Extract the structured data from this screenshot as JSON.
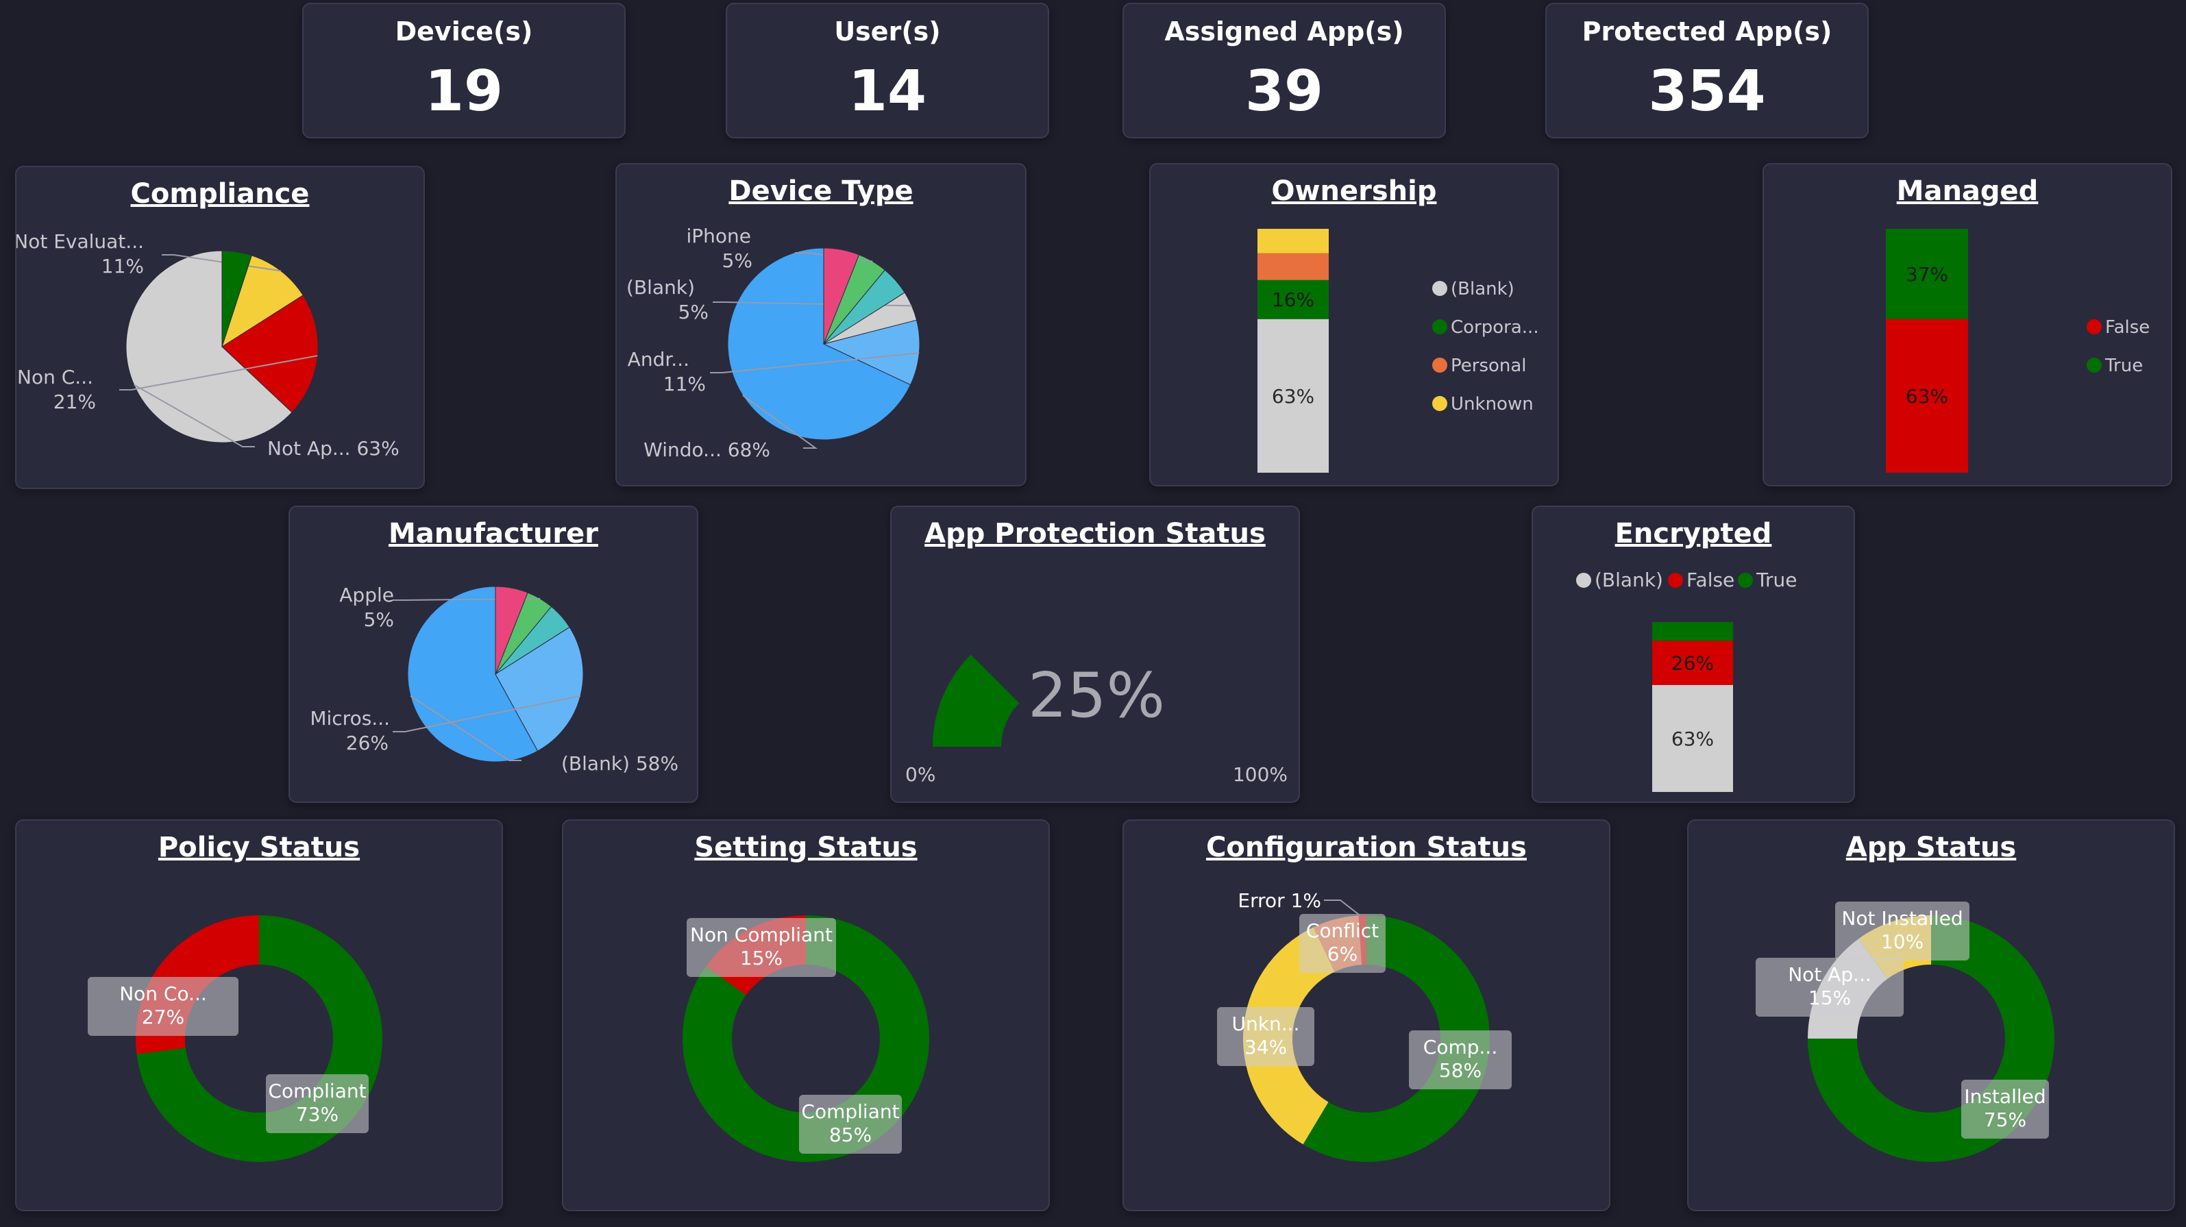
{
  "kpis": [
    {
      "label": "Device(s)",
      "value": "19"
    },
    {
      "label": "User(s)",
      "value": "14"
    },
    {
      "label": "Assigned App(s)",
      "value": "39"
    },
    {
      "label": "Protected App(s)",
      "value": "354"
    }
  ],
  "colors": {
    "background": "#1e1e2b",
    "card": "#2a2a3d",
    "green": "#007000",
    "red": "#d30000",
    "yellow": "#f5cf3a",
    "gray": "#d0d0d0",
    "orange": "#e8703c",
    "blue": "#42a5f5",
    "light_blue": "#64b5f6",
    "teal": "#4cc0c0",
    "light_green": "#56c26a",
    "pink": "#e9457c"
  },
  "chart_data": [
    {
      "id": "compliance",
      "type": "pie",
      "title": "Compliance",
      "slices": [
        {
          "label": "Not Ap...",
          "pct": "63%",
          "value": 63,
          "color": "#d0d0d0"
        },
        {
          "label": "Non C...",
          "pct": "21%",
          "value": 21,
          "color": "#d30000"
        },
        {
          "label": "Not Evaluat...",
          "pct": "11%",
          "value": 11,
          "color": "#f5cf3a"
        },
        {
          "label": "",
          "pct": "",
          "value": 5,
          "color": "#007000"
        }
      ]
    },
    {
      "id": "device_type",
      "type": "pie",
      "title": "Device Type",
      "slices": [
        {
          "label": "Windo...",
          "pct": "68%",
          "value": 68,
          "color": "#42a5f5"
        },
        {
          "label": "Andr...",
          "pct": "11%",
          "value": 11,
          "color": "#64b5f6"
        },
        {
          "label": "(Blank)",
          "pct": "5%",
          "value": 5,
          "color": "#d0d0d0"
        },
        {
          "label": "",
          "pct": "",
          "value": 5,
          "color": "#4cc0c0"
        },
        {
          "label": "iPhone",
          "pct": "5%",
          "value": 5,
          "color": "#56c26a"
        },
        {
          "label": "",
          "pct": "",
          "value": 6,
          "color": "#e9457c"
        }
      ]
    },
    {
      "id": "ownership",
      "type": "bar",
      "stacked": true,
      "title": "Ownership",
      "segments": [
        {
          "name": "(Blank)",
          "value": 63,
          "label": "63%",
          "color": "#d0d0d0"
        },
        {
          "name": "Corpora...",
          "value": 16,
          "label": "16%",
          "color": "#007000"
        },
        {
          "name": "Personal",
          "value": 11,
          "label": "",
          "color": "#e8703c"
        },
        {
          "name": "Unknown",
          "value": 10,
          "label": "",
          "color": "#f5cf3a"
        }
      ],
      "legend": [
        "(Blank)",
        "Corpora...",
        "Personal",
        "Unknown"
      ],
      "legend_position": "right"
    },
    {
      "id": "managed",
      "type": "bar",
      "stacked": true,
      "title": "Managed",
      "segments": [
        {
          "name": "False",
          "value": 63,
          "label": "63%",
          "color": "#d30000"
        },
        {
          "name": "True",
          "value": 37,
          "label": "37%",
          "color": "#007000"
        }
      ],
      "legend": [
        "False",
        "True"
      ],
      "legend_position": "right"
    },
    {
      "id": "manufacturer",
      "type": "pie",
      "title": "Manufacturer",
      "slices": [
        {
          "label": "(Blank)",
          "pct": "58%",
          "value": 58,
          "color": "#42a5f5"
        },
        {
          "label": "Micros...",
          "pct": "26%",
          "value": 26,
          "color": "#64b5f6"
        },
        {
          "label": "",
          "pct": "",
          "value": 5,
          "color": "#4cc0c0"
        },
        {
          "label": "Apple",
          "pct": "5%",
          "value": 5,
          "color": "#56c26a"
        },
        {
          "label": "",
          "pct": "",
          "value": 6,
          "color": "#e9457c"
        }
      ]
    },
    {
      "id": "app_protection",
      "type": "gauge",
      "title": "App Protection Status",
      "value": 25,
      "value_label": "25%",
      "min_label": "0%",
      "max_label": "100%",
      "color": "#007000"
    },
    {
      "id": "encrypted",
      "type": "bar",
      "stacked": true,
      "title": "Encrypted",
      "segments": [
        {
          "name": "(Blank)",
          "value": 63,
          "label": "63%",
          "color": "#d0d0d0"
        },
        {
          "name": "False",
          "value": 26,
          "label": "26%",
          "color": "#d30000"
        },
        {
          "name": "True",
          "value": 11,
          "label": "",
          "color": "#007000"
        }
      ],
      "legend": [
        "(Blank)",
        "False",
        "True"
      ],
      "legend_position": "top"
    },
    {
      "id": "policy_status",
      "type": "donut",
      "title": "Policy Status",
      "slices": [
        {
          "name": "Compliant",
          "label": "Compliant",
          "pct": "73%",
          "value": 73,
          "color": "#007000"
        },
        {
          "name": "Non Compliant",
          "label": "Non Co...",
          "pct": "27%",
          "value": 27,
          "color": "#d30000"
        }
      ]
    },
    {
      "id": "setting_status",
      "type": "donut",
      "title": "Setting Status",
      "slices": [
        {
          "name": "Compliant",
          "label": "Compliant",
          "pct": "85%",
          "value": 85,
          "color": "#007000"
        },
        {
          "name": "Non Compliant",
          "label": "Non Compliant",
          "pct": "15%",
          "value": 15,
          "color": "#d30000"
        }
      ]
    },
    {
      "id": "configuration_status",
      "type": "donut",
      "title": "Configuration Status",
      "slices": [
        {
          "name": "Compliant",
          "label": "Comp...",
          "pct": "58%",
          "value": 58,
          "color": "#007000"
        },
        {
          "name": "Unknown",
          "label": "Unkn...",
          "pct": "34%",
          "value": 34,
          "color": "#f5cf3a"
        },
        {
          "name": "Conflict",
          "label": "Conflict",
          "pct": "6%",
          "value": 6,
          "color": "#e8703c"
        },
        {
          "name": "Error",
          "label": "Error",
          "pct": "1%",
          "value": 1,
          "color": "#d30000"
        }
      ]
    },
    {
      "id": "app_status",
      "type": "donut",
      "title": "App Status",
      "slices": [
        {
          "name": "Installed",
          "label": "Installed",
          "pct": "75%",
          "value": 75,
          "color": "#007000"
        },
        {
          "name": "Not Applicable",
          "label": "Not Ap...",
          "pct": "15%",
          "value": 15,
          "color": "#d0d0d0"
        },
        {
          "name": "Not Installed",
          "label": "Not Installed",
          "pct": "10%",
          "value": 10,
          "color": "#f5cf3a"
        }
      ]
    }
  ]
}
